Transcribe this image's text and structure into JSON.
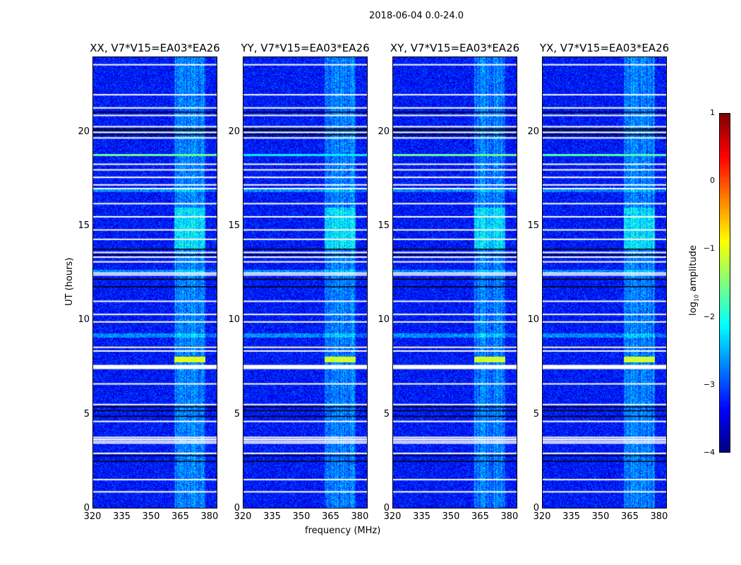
{
  "chart_data": {
    "type": "heatmap",
    "suptitle": "2018-06-04 0.0-24.0",
    "panels": [
      {
        "title": "XX, V7*V15=EA03*EA26",
        "burst_level": -1.0,
        "line_level": -1.6
      },
      {
        "title": "YY, V7*V15=EA03*EA26",
        "burst_level": -1.1,
        "line_level": -2.2
      },
      {
        "title": "XY, V7*V15=EA03*EA26",
        "burst_level": -1.1,
        "line_level": -1.6
      },
      {
        "title": "YX, V7*V15=EA03*EA26",
        "burst_level": -1.1,
        "line_level": -1.7
      }
    ],
    "xlabel": "frequency (MHz)",
    "ylabel": "UT (hours)",
    "xlim": [
      320,
      384
    ],
    "ylim": [
      0,
      24
    ],
    "xticks": [
      "320",
      "335",
      "350",
      "365",
      "380"
    ],
    "xtick_values": [
      320,
      335,
      350,
      365,
      380
    ],
    "yticks": [
      "0",
      "5",
      "10",
      "15",
      "20"
    ],
    "ytick_values": [
      0,
      5,
      10,
      15,
      20
    ],
    "colorbar": {
      "label": "log10 amplitude",
      "label_main": "log",
      "label_sub": "10",
      "label_rest": " amplitude",
      "ticks": [
        "−4",
        "−3",
        "−2",
        "−1",
        "0",
        "1"
      ],
      "tick_values": [
        -4,
        -3,
        -2,
        -1,
        0,
        1
      ],
      "range": [
        -4,
        1
      ],
      "colormap": "jet"
    },
    "baseline_level": -3.3,
    "rfi_band_mhz": [
      362,
      378
    ],
    "rfi_band_level": -2.5,
    "flagged_rows_hours": [
      0.85,
      1.5,
      2.9,
      3.45,
      3.55,
      3.65,
      3.75,
      4.6,
      5.5,
      6.6,
      7.45,
      7.5,
      7.55,
      8.35,
      8.55,
      9.9,
      10.3,
      11.0,
      12.4,
      12.5,
      13.1,
      13.35,
      13.6,
      14.3,
      14.8,
      15.5,
      16.2,
      17.0,
      17.2,
      17.6,
      18.0,
      18.3,
      19.7,
      20.0,
      20.3,
      20.9,
      21.3,
      22.0,
      23.6
    ],
    "dark_rows_hours": [
      2.5,
      2.8,
      4.9,
      5.2,
      5.4,
      8.6,
      11.8,
      12.2,
      13.5,
      13.8,
      19.9,
      20.1,
      20.2,
      21.1
    ],
    "burst_hours": [
      7.85,
      8.0
    ],
    "broadband_line_hours": [
      18.8
    ],
    "cyan_band_hours": [
      [
        16.85,
        17.05
      ],
      [
        12.55,
        12.7
      ],
      [
        9.1,
        9.3
      ]
    ],
    "bright_block_hours": [
      [
        13.8,
        16.0
      ]
    ]
  }
}
